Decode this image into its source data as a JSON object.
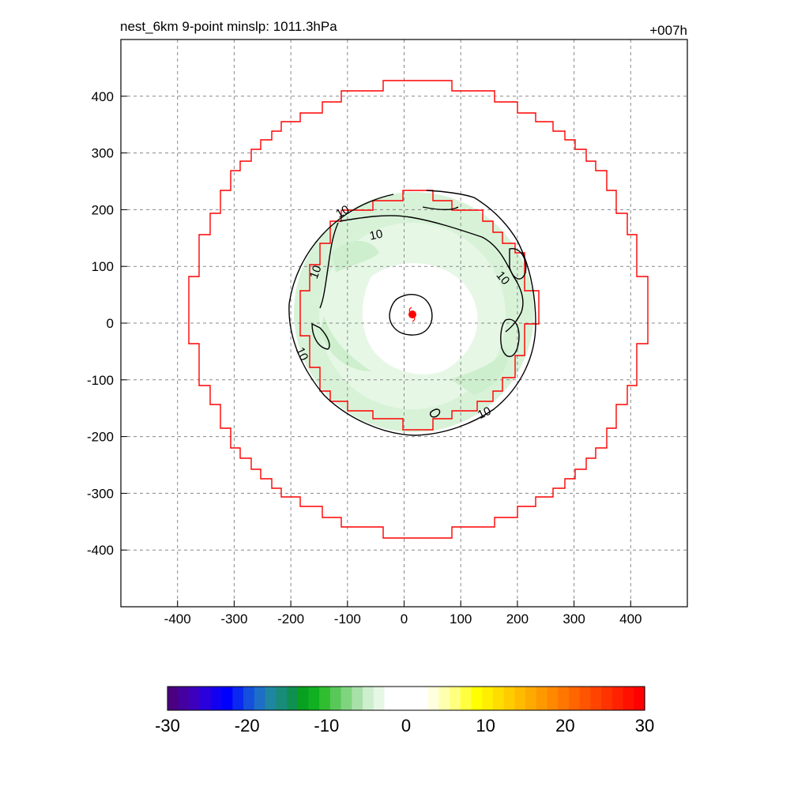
{
  "header": {
    "left_title": "nest_6km  9-point minslp: 1011.3hPa",
    "right_title": "+007h"
  },
  "chart_data": {
    "type": "heatmap",
    "title": "nest_6km  9-point minslp: 1011.3hPa",
    "forecast_hour_label": "+007h",
    "xlim": [
      -500,
      500
    ],
    "ylim": [
      -500,
      500
    ],
    "x_ticks": [
      -400,
      -300,
      -200,
      -100,
      0,
      100,
      200,
      300,
      400
    ],
    "y_ticks": [
      400,
      300,
      200,
      100,
      0,
      -100,
      -200,
      -300,
      -400
    ],
    "grid": true,
    "grid_style": "dashed",
    "storm_center": {
      "x": 14,
      "y": 15,
      "marker": "red dot with tropical-cyclone symbol"
    },
    "shaded_field": {
      "description": "light-green shading between ~-10 and ~-4, annulus around the storm center",
      "approx_extent_km": 230
    },
    "contours": [
      {
        "level": 10,
        "labels": [
          "10",
          "10",
          "10",
          "10",
          "10"
        ]
      }
    ],
    "outer_boundary_red": {
      "approx_radius_km": 400
    },
    "inner_boundary_red": {
      "approx_radius_km": 230
    },
    "colorbar": {
      "min": -30,
      "max": 30,
      "tick_labels": [
        "-30",
        "-20",
        "-10",
        "0",
        "10",
        "20",
        "30"
      ],
      "colors": [
        "#4B0082",
        "#4400A0",
        "#3C00BE",
        "#2A00DC",
        "#1400F0",
        "#0000FF",
        "#0A28F0",
        "#1450DC",
        "#1E6EC8",
        "#1E86A0",
        "#188C78",
        "#109050",
        "#08A020",
        "#10B020",
        "#30BE30",
        "#58C858",
        "#80D480",
        "#A8E0A8",
        "#CDEFCD",
        "#E6F7E6",
        "#FFFFFF",
        "#FFFFFF",
        "#FFFFFF",
        "#FFFFFF",
        "#FFFFE0",
        "#FFFFB0",
        "#FFFF80",
        "#FFFF40",
        "#FFFF00",
        "#FFEE00",
        "#FFDD00",
        "#FFCC00",
        "#FFBB00",
        "#FFAA00",
        "#FF9900",
        "#FF8800",
        "#FF7700",
        "#FF6600",
        "#FF5500",
        "#FF4400",
        "#FF3300",
        "#FF2200",
        "#FF1100",
        "#FF0000"
      ]
    }
  }
}
